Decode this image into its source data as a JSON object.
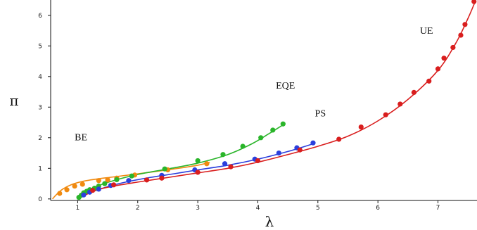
{
  "chart_data": {
    "type": "scatter",
    "xlabel": "λ",
    "ylabel": "π",
    "xlim": [
      0.55,
      7.65
    ],
    "ylim": [
      -0.05,
      6.5
    ],
    "x_ticks": [
      1,
      2,
      3,
      4,
      5,
      6,
      7
    ],
    "y_ticks": [
      0,
      1,
      2,
      3,
      4,
      5,
      6
    ],
    "grid": false,
    "annotations": [
      {
        "text": "BE",
        "x": 0.95,
        "y": 1.92
      },
      {
        "text": "EQE",
        "x": 4.3,
        "y": 3.6
      },
      {
        "text": "PS",
        "x": 4.95,
        "y": 2.7
      },
      {
        "text": "UE",
        "x": 6.7,
        "y": 5.4
      }
    ],
    "series": [
      {
        "color": "#f08a10",
        "points": [
          [
            0.7,
            0.18
          ],
          [
            0.82,
            0.3
          ],
          [
            0.95,
            0.42
          ],
          [
            1.08,
            0.48
          ],
          [
            1.35,
            0.6
          ],
          [
            1.5,
            0.62
          ],
          [
            1.65,
            0.68
          ],
          [
            1.95,
            0.78
          ],
          [
            2.5,
            0.95
          ],
          [
            3.15,
            1.15
          ]
        ],
        "curve": [
          [
            0.58,
            0.0
          ],
          [
            0.65,
            0.15
          ],
          [
            0.75,
            0.32
          ],
          [
            0.9,
            0.47
          ],
          [
            1.1,
            0.58
          ],
          [
            1.35,
            0.66
          ],
          [
            1.6,
            0.72
          ],
          [
            2.0,
            0.82
          ],
          [
            2.5,
            0.95
          ],
          [
            3.0,
            1.1
          ],
          [
            3.2,
            1.2
          ]
        ]
      },
      {
        "color": "#2ab52a",
        "points": [
          [
            1.02,
            0.05
          ],
          [
            1.06,
            0.12
          ],
          [
            1.1,
            0.2
          ],
          [
            1.15,
            0.25
          ],
          [
            1.2,
            0.3
          ],
          [
            1.28,
            0.35
          ],
          [
            1.35,
            0.42
          ],
          [
            1.45,
            0.5
          ],
          [
            1.65,
            0.63
          ],
          [
            1.9,
            0.75
          ],
          [
            2.45,
            0.98
          ],
          [
            3.0,
            1.25
          ],
          [
            3.42,
            1.45
          ],
          [
            3.75,
            1.72
          ],
          [
            4.05,
            2.0
          ],
          [
            4.25,
            2.25
          ],
          [
            4.42,
            2.45
          ]
        ],
        "curve": [
          [
            1.0,
            0.0
          ],
          [
            1.1,
            0.2
          ],
          [
            1.3,
            0.4
          ],
          [
            1.6,
            0.6
          ],
          [
            2.0,
            0.8
          ],
          [
            2.5,
            0.98
          ],
          [
            3.0,
            1.17
          ],
          [
            3.5,
            1.45
          ],
          [
            3.9,
            1.8
          ],
          [
            4.2,
            2.15
          ],
          [
            4.42,
            2.42
          ]
        ]
      },
      {
        "color": "#2b3fdd",
        "points": [
          [
            1.1,
            0.13
          ],
          [
            1.2,
            0.22
          ],
          [
            1.35,
            0.32
          ],
          [
            1.55,
            0.44
          ],
          [
            1.85,
            0.6
          ],
          [
            2.4,
            0.77
          ],
          [
            2.95,
            0.95
          ],
          [
            3.45,
            1.15
          ],
          [
            3.95,
            1.3
          ],
          [
            4.35,
            1.5
          ],
          [
            4.65,
            1.67
          ],
          [
            4.92,
            1.83
          ]
        ],
        "curve": [
          [
            1.0,
            0.0
          ],
          [
            1.2,
            0.2
          ],
          [
            1.5,
            0.4
          ],
          [
            1.8,
            0.55
          ],
          [
            2.2,
            0.7
          ],
          [
            2.6,
            0.82
          ],
          [
            3.0,
            0.95
          ],
          [
            3.5,
            1.1
          ],
          [
            4.0,
            1.3
          ],
          [
            4.5,
            1.55
          ],
          [
            4.92,
            1.8
          ]
        ]
      },
      {
        "color": "#d91e1e",
        "points": [
          [
            1.25,
            0.28
          ],
          [
            1.6,
            0.46
          ],
          [
            2.15,
            0.62
          ],
          [
            2.4,
            0.68
          ],
          [
            3.0,
            0.87
          ],
          [
            3.55,
            1.05
          ],
          [
            4.0,
            1.25
          ],
          [
            4.7,
            1.6
          ],
          [
            5.35,
            1.95
          ],
          [
            5.72,
            2.35
          ],
          [
            6.13,
            2.75
          ],
          [
            6.37,
            3.1
          ],
          [
            6.6,
            3.48
          ],
          [
            6.85,
            3.85
          ],
          [
            7.0,
            4.25
          ],
          [
            7.1,
            4.6
          ],
          [
            7.25,
            4.95
          ],
          [
            7.38,
            5.35
          ],
          [
            7.45,
            5.7
          ],
          [
            7.6,
            6.45
          ]
        ],
        "curve": [
          [
            1.0,
            0.0
          ],
          [
            1.3,
            0.28
          ],
          [
            1.6,
            0.42
          ],
          [
            2.0,
            0.55
          ],
          [
            2.5,
            0.7
          ],
          [
            3.0,
            0.85
          ],
          [
            3.5,
            1.0
          ],
          [
            4.0,
            1.2
          ],
          [
            4.5,
            1.45
          ],
          [
            5.0,
            1.72
          ],
          [
            5.5,
            2.05
          ],
          [
            6.0,
            2.55
          ],
          [
            6.5,
            3.25
          ],
          [
            7.0,
            4.2
          ],
          [
            7.3,
            5.1
          ],
          [
            7.5,
            5.9
          ],
          [
            7.62,
            6.45
          ]
        ]
      }
    ]
  }
}
